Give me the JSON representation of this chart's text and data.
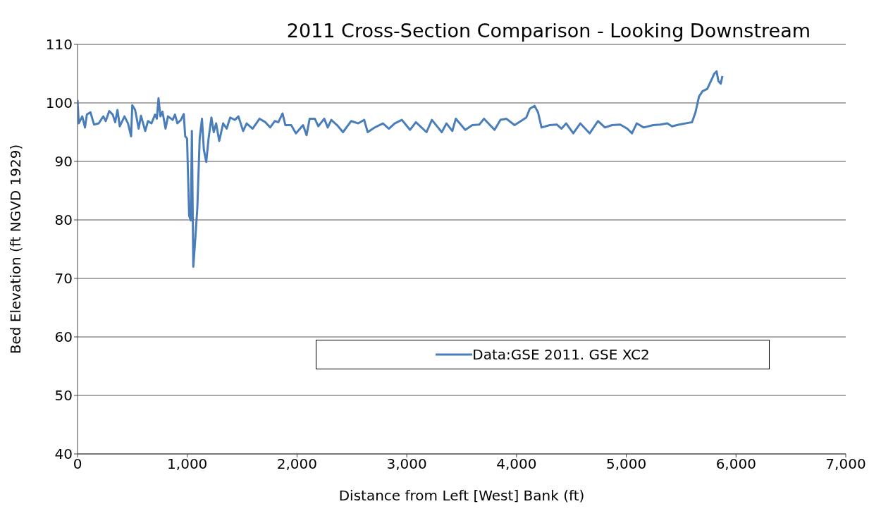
{
  "chart_data": {
    "type": "line",
    "title": "2011 Cross-Section Comparison - Looking Downstream",
    "xlabel": "Distance from Left [West] Bank (ft)",
    "ylabel": "Bed Elevation (ft NGVD 1929)",
    "xlim": [
      0,
      7000
    ],
    "xticks": [
      0,
      {
        "value": 1000,
        "label": "1,000"
      },
      {
        "value": 2000,
        "label": "2,000"
      },
      {
        "value": 3000,
        "label": "3,000"
      },
      {
        "value": 4000,
        "label": "4,000"
      },
      {
        "value": 5000,
        "label": "5,000"
      },
      {
        "value": 6000,
        "label": "6,000"
      },
      {
        "value": 7000,
        "label": "7,000"
      }
    ],
    "ylim": [
      40,
      110
    ],
    "yticks": [
      40,
      50,
      60,
      70,
      80,
      90,
      100,
      110
    ],
    "grid": "y",
    "legend": "bottom",
    "marker": "none",
    "line_style": "solid",
    "series": [
      {
        "name": "Data:GSE 2011. GSE XC2",
        "color": "#4a7ebb",
        "x": [
          0,
          11,
          43,
          68,
          85,
          118,
          150,
          193,
          235,
          257,
          289,
          321,
          343,
          364,
          385,
          428,
          460,
          488,
          499,
          525,
          557,
          578,
          617,
          642,
          674,
          706,
          723,
          738,
          755,
          774,
          802,
          824,
          867,
          888,
          910,
          942,
          968,
          981,
          998,
          1017,
          1032,
          1042,
          1055,
          1075,
          1092,
          1113,
          1134,
          1151,
          1173,
          1194,
          1220,
          1241,
          1263,
          1291,
          1327,
          1359,
          1391,
          1434,
          1466,
          1509,
          1541,
          1595,
          1659,
          1712,
          1755,
          1798,
          1830,
          1868,
          1894,
          1947,
          1990,
          2055,
          2087,
          2115,
          2162,
          2194,
          2248,
          2280,
          2312,
          2365,
          2419,
          2494,
          2558,
          2612,
          2644,
          2708,
          2783,
          2837,
          2890,
          2955,
          3030,
          3083,
          3180,
          3229,
          3319,
          3362,
          3415,
          3447,
          3533,
          3597,
          3661,
          3704,
          3800,
          3854,
          3907,
          3982,
          4057,
          4089,
          4121,
          4164,
          4196,
          4228,
          4303,
          4367,
          4410,
          4453,
          4517,
          4581,
          4667,
          4742,
          4806,
          4870,
          4945,
          5009,
          5052,
          5095,
          5159,
          5245,
          5309,
          5374,
          5417,
          5481,
          5599,
          5631,
          5663,
          5695,
          5738,
          5770,
          5802,
          5823,
          5840,
          5861,
          5876
        ],
        "values": [
          100.5,
          96.5,
          97.7,
          95.8,
          98,
          98.4,
          96.3,
          96.5,
          97.7,
          96.9,
          98.6,
          98,
          96.7,
          98.8,
          96,
          97.7,
          96.5,
          94.3,
          99.6,
          98.8,
          95.6,
          97.8,
          95.2,
          96.9,
          96.5,
          98,
          97.3,
          100.8,
          97.7,
          98.5,
          95.6,
          97.7,
          97.1,
          98,
          96.5,
          97.1,
          98.1,
          94.3,
          93.9,
          80.7,
          79.9,
          95.2,
          72,
          77.3,
          82.2,
          93.9,
          97.3,
          92,
          89.9,
          93.9,
          97.5,
          95,
          96.5,
          93.5,
          96.5,
          95.6,
          97.5,
          97.1,
          97.7,
          95.2,
          96.5,
          95.6,
          97.3,
          96.7,
          95.8,
          96.9,
          96.7,
          98.2,
          96.2,
          96.2,
          94.8,
          96.2,
          94.5,
          97.3,
          97.3,
          96,
          97.3,
          95.8,
          97.1,
          96.2,
          95,
          96.9,
          96.5,
          97.1,
          95,
          95.8,
          96.5,
          95.6,
          96.5,
          97.1,
          95.4,
          96.7,
          95,
          97.1,
          95,
          96.5,
          95.2,
          97.3,
          95.4,
          96.2,
          96.3,
          97.3,
          95.4,
          97.1,
          97.3,
          96.2,
          97.1,
          97.5,
          99,
          99.5,
          98.4,
          95.8,
          96.2,
          96.3,
          95.6,
          96.5,
          94.8,
          96.5,
          94.8,
          96.9,
          95.8,
          96.2,
          96.3,
          95.6,
          94.8,
          96.5,
          95.8,
          96.2,
          96.3,
          96.5,
          96,
          96.3,
          96.7,
          98.4,
          101.1,
          102,
          102.4,
          103.7,
          105,
          105.4,
          103.7,
          103.3,
          104.6
        ]
      }
    ]
  }
}
